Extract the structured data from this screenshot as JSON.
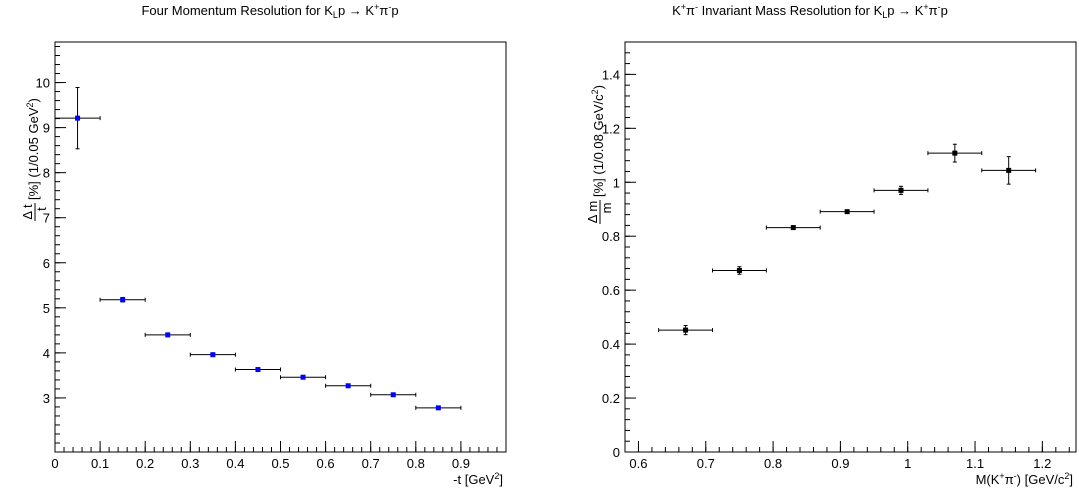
{
  "chart_data": [
    {
      "type": "scatter",
      "title": "Four Momentum Resolution for K_Lp → K⁺π⁻p",
      "xlabel": "-t [GeV²]",
      "ylabel": "Δt/t [%] (1/0.05 GeV²)",
      "xlim": [
        0,
        1.0
      ],
      "ylim": [
        1.8,
        10.9
      ],
      "xticks": [
        "0",
        "0.1",
        "0.2",
        "0.3",
        "0.4",
        "0.5",
        "0.6",
        "0.7",
        "0.8",
        "0.9"
      ],
      "yticks": [
        "3",
        "4",
        "5",
        "6",
        "7",
        "8",
        "9",
        "10"
      ],
      "marker_color": "#0000ff",
      "grid": false,
      "series": [
        {
          "x": [
            0.05,
            0.15,
            0.25,
            0.35,
            0.45,
            0.55,
            0.65,
            0.75,
            0.85
          ],
          "y": [
            9.21,
            5.18,
            4.4,
            3.96,
            3.63,
            3.46,
            3.27,
            3.07,
            2.78
          ],
          "xerr": [
            0.05,
            0.05,
            0.05,
            0.05,
            0.05,
            0.05,
            0.05,
            0.05,
            0.05
          ],
          "yerr": [
            0.68,
            0.05,
            0.04,
            0.03,
            0.03,
            0.03,
            0.03,
            0.03,
            0.03
          ]
        }
      ]
    },
    {
      "type": "scatter",
      "title": "K⁺π⁻ Invariant Mass Resolution for K_Lp → K⁺π⁻p",
      "xlabel": "M(K⁺π⁻) [GeV/c²]",
      "ylabel": "Δm/m [%] (1/0.08 GeV/c²)",
      "xlim": [
        0.58,
        1.25
      ],
      "ylim": [
        0,
        1.52
      ],
      "xticks": [
        "0.6",
        "0.7",
        "0.8",
        "0.9",
        "1",
        "1.1",
        "1.2"
      ],
      "yticks": [
        "0",
        "0.2",
        "0.4",
        "0.6",
        "0.8",
        "1",
        "1.2",
        "1.4"
      ],
      "marker_color": "#000000",
      "grid": false,
      "series": [
        {
          "x": [
            0.67,
            0.75,
            0.83,
            0.91,
            0.99,
            1.07,
            1.15
          ],
          "y": [
            0.452,
            0.673,
            0.832,
            0.891,
            0.97,
            1.108,
            1.044
          ],
          "xerr": [
            0.04,
            0.04,
            0.04,
            0.04,
            0.04,
            0.04,
            0.04
          ],
          "yerr": [
            0.017,
            0.014,
            0.006,
            0.006,
            0.015,
            0.033,
            0.051
          ]
        }
      ]
    }
  ]
}
